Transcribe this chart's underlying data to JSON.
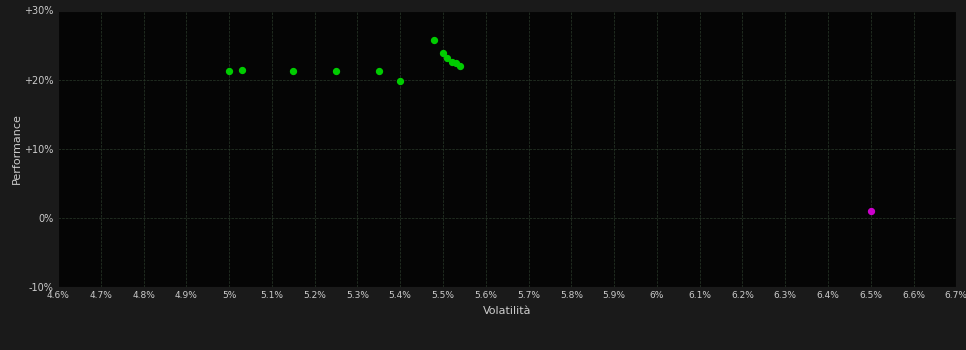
{
  "background_color": "#1a1a1a",
  "plot_bg_color": "#050505",
  "grid_color": "#2a3a2a",
  "text_color": "#cccccc",
  "xlabel": "Volatilità",
  "ylabel": "Performance",
  "xlim": [
    0.046,
    0.067
  ],
  "ylim": [
    -0.1,
    0.3
  ],
  "xticks": [
    0.046,
    0.047,
    0.048,
    0.049,
    0.05,
    0.051,
    0.052,
    0.053,
    0.054,
    0.055,
    0.056,
    0.057,
    0.058,
    0.059,
    0.06,
    0.061,
    0.062,
    0.063,
    0.064,
    0.065,
    0.066,
    0.067
  ],
  "yticks": [
    -0.1,
    0.0,
    0.1,
    0.2,
    0.3
  ],
  "ytick_labels": [
    "-10%",
    "0%",
    "+10%",
    "+20%",
    "+30%"
  ],
  "green_points": [
    [
      0.05,
      0.213
    ],
    [
      0.0503,
      0.214
    ],
    [
      0.0515,
      0.213
    ],
    [
      0.0525,
      0.213
    ],
    [
      0.0535,
      0.213
    ],
    [
      0.054,
      0.198
    ],
    [
      0.0548,
      0.258
    ],
    [
      0.055,
      0.238
    ],
    [
      0.0551,
      0.231
    ],
    [
      0.0552,
      0.225
    ],
    [
      0.0553,
      0.224
    ],
    [
      0.0554,
      0.22
    ]
  ],
  "magenta_points": [
    [
      0.065,
      0.01
    ]
  ],
  "green_color": "#00cc00",
  "magenta_color": "#cc00cc",
  "marker_size": 18
}
